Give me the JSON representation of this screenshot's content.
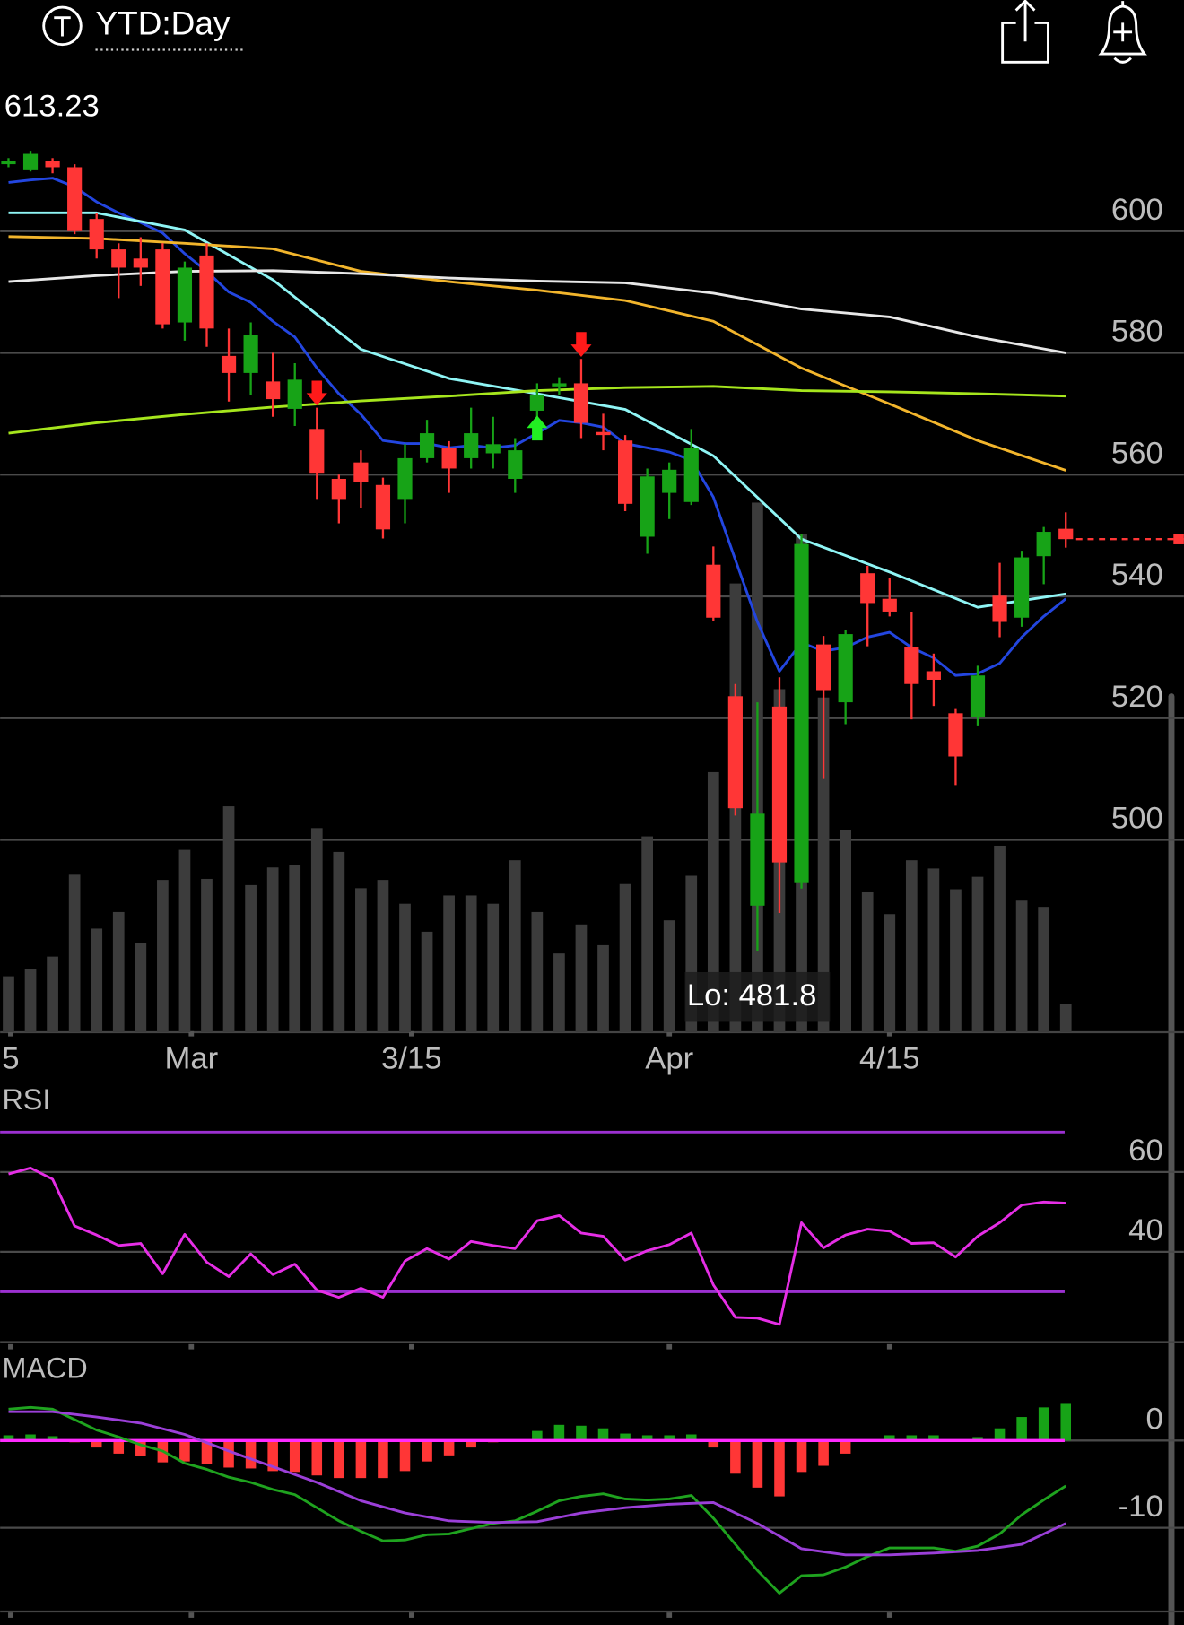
{
  "header": {
    "title": "YTD:Day"
  },
  "chart_data": [
    {
      "type": "candlestick",
      "high_label": "613.23",
      "low_label": "Lo: 481.8",
      "xlim": [
        -0.38,
        53.36
      ],
      "xticks": [
        {
          "value": 0.1,
          "label": "5"
        },
        {
          "value": 8.3,
          "label": "Mar"
        },
        {
          "value": 18.3,
          "label": "3/15"
        },
        {
          "value": 30,
          "label": "Apr"
        },
        {
          "value": 40,
          "label": "4/15"
        }
      ],
      "ylim": [
        468.4,
        623.5
      ],
      "yticks": [
        500,
        520,
        540,
        560,
        580,
        600
      ],
      "grid": true,
      "up_color": "#17a317",
      "down_color": "#ff3636",
      "volume_color": "#3c3c3c",
      "open": [
        611,
        610,
        611.5,
        610.5,
        602,
        597,
        595.5,
        597,
        585,
        596,
        579.5,
        576.7,
        575.3,
        570.8,
        567.5,
        559.3,
        562,
        558.3,
        556,
        562.7,
        564.4,
        562.7,
        563.5,
        559.3,
        570.5,
        574.5,
        575,
        567,
        565.6,
        549.8,
        557,
        555.5,
        545.2,
        523.6,
        489.2,
        521.9,
        492.9,
        532.1,
        522.6,
        543.8,
        539.6,
        531.6,
        527.7,
        520.8,
        520.2,
        540.1,
        536.5,
        546.6,
        551.1
      ],
      "high": [
        612,
        613.2,
        612,
        611,
        603,
        598,
        599,
        598,
        595,
        598,
        584,
        585,
        580,
        578.3,
        571,
        560,
        564,
        559.5,
        565,
        569,
        565.5,
        571,
        569.5,
        566,
        575,
        576,
        579,
        570,
        566.5,
        561,
        562,
        567.5,
        548.2,
        525.6,
        522.6,
        526.7,
        550.2,
        533.5,
        534.5,
        545,
        543,
        537.5,
        530.6,
        521.5,
        528.6,
        545.5,
        547.5,
        551.4,
        553.8
      ],
      "low": [
        610.5,
        609.8,
        609.5,
        599.5,
        595.5,
        589,
        591,
        584,
        582,
        581,
        572,
        573,
        569.5,
        568,
        556,
        552,
        554.5,
        549.5,
        552,
        562,
        557,
        561,
        561,
        557,
        568,
        573,
        566,
        564,
        554,
        547,
        552.7,
        555,
        536,
        504,
        481.8,
        488,
        492,
        510,
        519,
        531.8,
        536.7,
        519.8,
        522,
        509,
        518.8,
        533.3,
        535,
        542,
        548
      ],
      "close": [
        611.5,
        612.7,
        610.5,
        600,
        597,
        594,
        594,
        584.7,
        594,
        584,
        576.7,
        583,
        572.4,
        575.6,
        560.3,
        556,
        558.8,
        551,
        562.7,
        566.8,
        561,
        566.8,
        565,
        564,
        573,
        575,
        568.5,
        566.5,
        555.2,
        559.7,
        560.8,
        564.4,
        536.5,
        505.2,
        504.3,
        496.3,
        548.6,
        524.6,
        533.8,
        538.9,
        537.5,
        525.6,
        526.3,
        513.7,
        527,
        535.8,
        546.4,
        550.6,
        549.4
      ],
      "volume": [
        54,
        61,
        73,
        152,
        100,
        116,
        86,
        147,
        176,
        148,
        218,
        142,
        159,
        161,
        197,
        174,
        139,
        147,
        124,
        97,
        132,
        132,
        124,
        166,
        116,
        76,
        104,
        84,
        143,
        189,
        108,
        151,
        251,
        433,
        511,
        331,
        481,
        323,
        195,
        135,
        114,
        166,
        158,
        138,
        150,
        180,
        127,
        121,
        27
      ],
      "series": [
        {
          "color": "#2346e0",
          "x": [
            0,
            1,
            2,
            3,
            4,
            5,
            6,
            7,
            8,
            9,
            10,
            11,
            12,
            13,
            14,
            15,
            16,
            17,
            18,
            19,
            20,
            21,
            22,
            23,
            24,
            25,
            26,
            27,
            28,
            29,
            30,
            31,
            32,
            33,
            34,
            35,
            36,
            37,
            38,
            39,
            40,
            41,
            42,
            43,
            44,
            45,
            46,
            47,
            48
          ],
          "values": [
            608,
            608.4,
            608.7,
            607.3,
            604.8,
            603,
            601.4,
            599.7,
            596.3,
            593.4,
            590,
            588.3,
            585.2,
            582.6,
            577.5,
            573.3,
            569.9,
            565.6,
            565.1,
            565.1,
            564.4,
            564.8,
            564.4,
            564.8,
            566.8,
            568.9,
            568.5,
            567.8,
            565.1,
            564.4,
            563.7,
            562.4,
            556.3,
            546,
            535.8,
            527.7,
            532.4,
            531,
            531.6,
            533.3,
            534.1,
            531.6,
            529.9,
            527,
            527.3,
            529,
            533.3,
            536.7,
            539.6
          ]
        },
        {
          "color": "#8ff5f5",
          "x": [
            0,
            4,
            8,
            12,
            16,
            20,
            24,
            28,
            32,
            36,
            40,
            44,
            48
          ],
          "values": [
            603,
            603,
            600.2,
            592,
            580.6,
            575.8,
            573.3,
            570.7,
            563.1,
            549.4,
            544,
            538.2,
            540.4
          ]
        },
        {
          "color": "#f2b52c",
          "x": [
            0,
            4,
            8,
            12,
            16,
            20,
            24,
            28,
            32,
            36,
            40,
            44,
            48
          ],
          "values": [
            599.1,
            598.8,
            598,
            597.1,
            593.4,
            591.7,
            590.3,
            588.6,
            585.2,
            577.5,
            571.6,
            565.6,
            560.7
          ]
        },
        {
          "color": "#e8e8e8",
          "x": [
            0,
            4,
            8,
            12,
            16,
            20,
            24,
            28,
            32,
            36,
            40,
            44,
            48
          ],
          "values": [
            591.7,
            592.7,
            593.4,
            593.5,
            593,
            592.3,
            591.8,
            591.5,
            589.8,
            587.2,
            585.9,
            582.6,
            580
          ]
        },
        {
          "color": "#a6e61d",
          "x": [
            0,
            4,
            8,
            12,
            16,
            20,
            24,
            28,
            32,
            36,
            40,
            44,
            48
          ],
          "values": [
            566.8,
            568.5,
            569.9,
            571.1,
            572.1,
            572.9,
            573.8,
            574.3,
            574.5,
            573.8,
            573.6,
            573.3,
            572.9
          ]
        }
      ],
      "signals": [
        {
          "index": 14,
          "direction": "down",
          "color": "#ff1a1a"
        },
        {
          "index": 24,
          "direction": "up",
          "color": "#22ee22"
        },
        {
          "index": 26,
          "direction": "down",
          "color": "#ff1a1a"
        }
      ]
    },
    {
      "type": "line",
      "title": "RSI",
      "ylim": [
        17.4,
        74.5
      ],
      "yticks": [
        40,
        60
      ],
      "reference_lines": [
        30,
        70
      ],
      "reference_color": "#9b30d0",
      "series": [
        {
          "color": "#e62ee6",
          "values": [
            59.5,
            61,
            58.2,
            46.5,
            44.2,
            41.6,
            42.1,
            34.5,
            44.4,
            37.4,
            33.8,
            39.5,
            34.3,
            36.9,
            30.4,
            28.6,
            30.9,
            28.6,
            37.7,
            40.8,
            38.2,
            42.6,
            41.6,
            40.8,
            47.8,
            49.1,
            44.7,
            43.9,
            37.9,
            40.3,
            41.8,
            44.7,
            31.7,
            23.6,
            23.4,
            21.8,
            47.3,
            41,
            44.2,
            45.7,
            45.2,
            42.1,
            42.3,
            38.7,
            43.9,
            47.3,
            51.7,
            52.5,
            52.2
          ]
        }
      ]
    },
    {
      "type": "macd",
      "title": "MACD",
      "ylim": [
        -19.6,
        10.1
      ],
      "yticks": [
        -10,
        0
      ],
      "zero_color": "#ff2bff",
      "up_color": "#17a317",
      "down_color": "#ff3636",
      "histogram": [
        0.6,
        0.7,
        0.5,
        -0.2,
        -0.8,
        -1.5,
        -1.8,
        -2.5,
        -2.4,
        -2.7,
        -3.1,
        -3.2,
        -3.5,
        -3.6,
        -4,
        -4.3,
        -4.3,
        -4.3,
        -3.5,
        -2.4,
        -1.7,
        -0.8,
        -0.2,
        -0.1,
        1.1,
        1.8,
        1.7,
        1.4,
        0.8,
        0.6,
        0.6,
        0.7,
        -0.8,
        -3.8,
        -5.4,
        -6.4,
        -3.6,
        -2.9,
        -1.5,
        0,
        0.6,
        0.6,
        0.6,
        0,
        0.4,
        1.4,
        2.7,
        3.8,
        4.2
      ],
      "series": [
        {
          "color": "#1fa31f",
          "values": [
            3.6,
            3.8,
            3.6,
            2.4,
            1.2,
            0.4,
            -0.5,
            -1.2,
            -2.6,
            -3.3,
            -4.2,
            -4.8,
            -5.6,
            -6.2,
            -7.7,
            -9.2,
            -10.4,
            -11.5,
            -11.4,
            -10.8,
            -10.7,
            -10.1,
            -9.5,
            -9.2,
            -8.1,
            -6.9,
            -6.4,
            -6.1,
            -6.7,
            -6.8,
            -6.7,
            -6.3,
            -8.9,
            -11.9,
            -14.9,
            -17.5,
            -15.5,
            -15.4,
            -14.5,
            -13.3,
            -12.3,
            -12.3,
            -12.3,
            -12.7,
            -12.1,
            -10.7,
            -8.5,
            -6.8,
            -5.2
          ]
        },
        {
          "color": "#9b3fd8",
          "x": [
            0,
            2,
            4,
            6,
            8,
            10,
            12,
            14,
            16,
            18,
            20,
            22,
            24,
            26,
            28,
            30,
            32,
            34,
            36,
            38,
            40,
            42,
            44,
            46,
            48
          ],
          "values": [
            3.3,
            3.3,
            2.7,
            2,
            0.7,
            -1.2,
            -3,
            -4.8,
            -6.9,
            -8.3,
            -9.2,
            -9.4,
            -9.3,
            -8.3,
            -7.7,
            -7.3,
            -7.1,
            -9.5,
            -12.4,
            -13.1,
            -13.1,
            -12.9,
            -12.6,
            -11.9,
            -9.5
          ]
        }
      ]
    }
  ]
}
